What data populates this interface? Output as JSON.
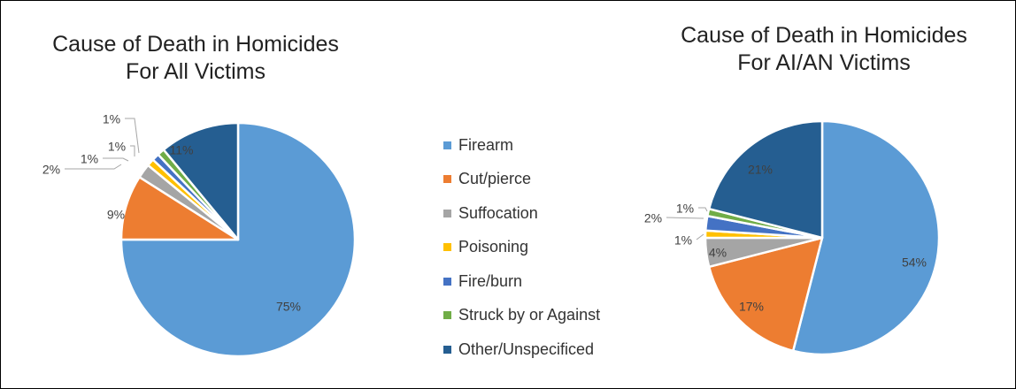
{
  "chart_data": [
    {
      "type": "pie",
      "title": "Cause of Death in Homicides",
      "subtitle": "For All Victims",
      "categories": [
        "Firearm",
        "Cut/pierce",
        "Suffocation",
        "Poisoning",
        "Fire/burn",
        "Struck by or Against",
        "Other/Unspecificed"
      ],
      "values": [
        75,
        9,
        2,
        1,
        1,
        1,
        11
      ],
      "labels": [
        "75%",
        "9%",
        "2%",
        "1%",
        "1%",
        "1%",
        "11%"
      ],
      "start": "12 o'clock",
      "direction": "clockwise"
    },
    {
      "type": "pie",
      "title": "Cause of Death in Homicides",
      "subtitle": "For AI/AN Victims",
      "categories": [
        "Firearm",
        "Cut/pierce",
        "Suffocation",
        "Poisoning",
        "Fire/burn",
        "Struck by or Against",
        "Other/Unspecificed"
      ],
      "values": [
        54,
        17,
        4,
        1,
        2,
        1,
        21
      ],
      "labels": [
        "54%",
        "17%",
        "4%",
        "1%",
        "2%",
        "1%",
        "21%"
      ],
      "start": "12 o'clock",
      "direction": "clockwise"
    }
  ],
  "legend": {
    "items": [
      "Firearm",
      "Cut/pierce",
      "Suffocation",
      "Poisoning",
      "Fire/burn",
      "Struck by or Against",
      "Other/Unspecificed"
    ],
    "placement": "center"
  },
  "colors": [
    "#5b9bd5",
    "#ed7d31",
    "#a5a5a5",
    "#ffc000",
    "#4472c4",
    "#70ad47",
    "#255e91"
  ],
  "label_color": "#404040"
}
